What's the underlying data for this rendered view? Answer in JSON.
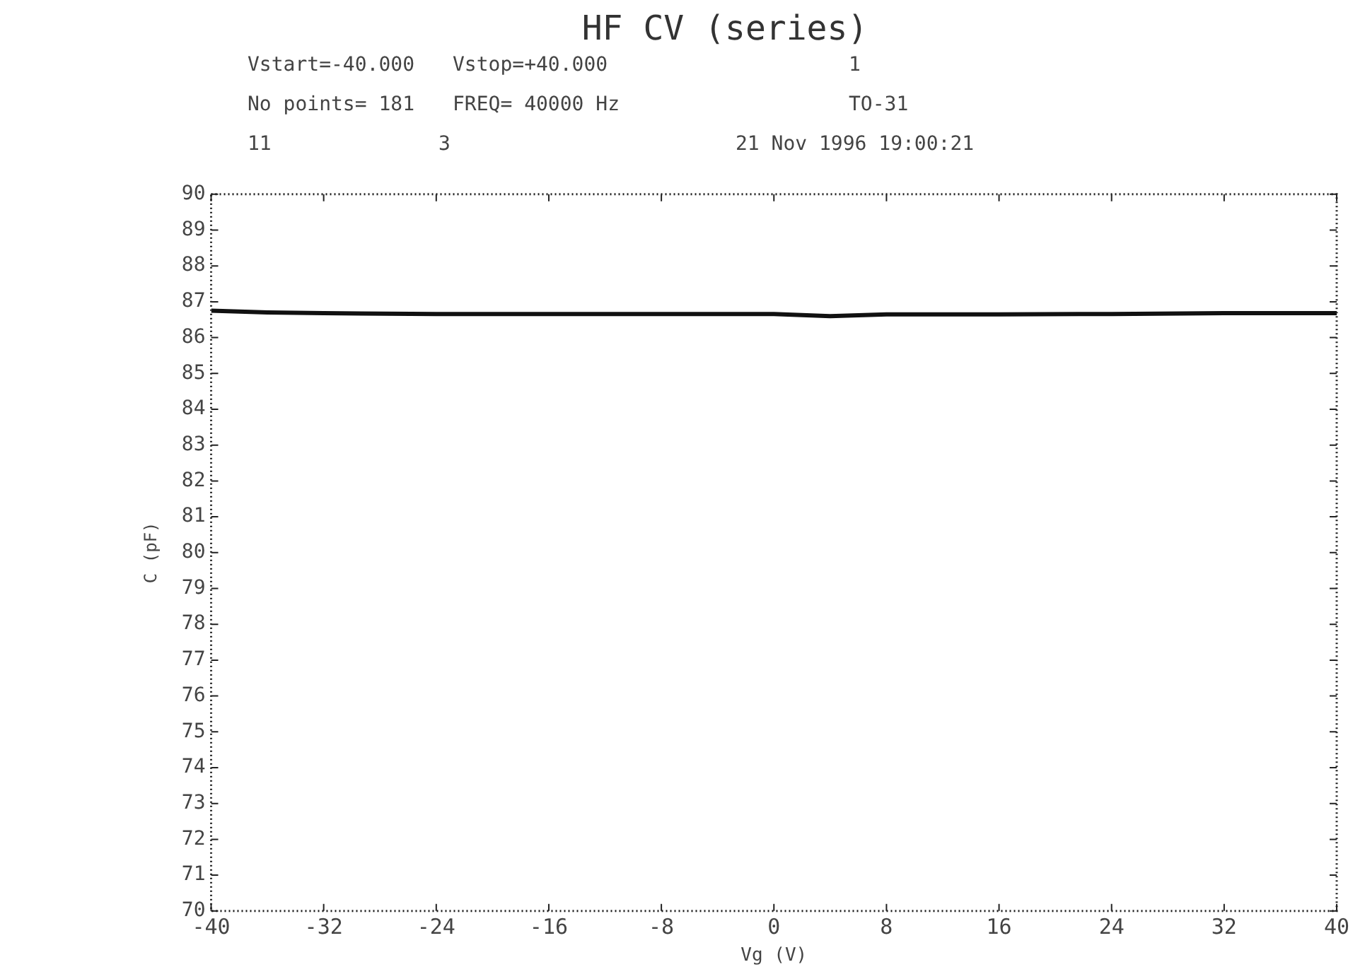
{
  "chart_data": {
    "type": "line",
    "title": "HF CV (series)",
    "xlabel": "Vg (V)",
    "ylabel": "C (pF)",
    "annotations": [
      "Vstart=-40.000",
      "Vstop=+40.000",
      "1",
      "No points= 181",
      "FREQ= 40000 Hz",
      "TO-31",
      "11",
      "3",
      "21 Nov 1996 19:00:21"
    ],
    "x": [
      -40,
      -36,
      -32,
      -24,
      -16,
      -8,
      0,
      4,
      8,
      16,
      24,
      32,
      36,
      40
    ],
    "series": [
      {
        "color": "#111111",
        "values": [
          86.75,
          86.7,
          86.68,
          86.66,
          86.66,
          86.66,
          86.66,
          86.6,
          86.65,
          86.65,
          86.66,
          86.68,
          86.68,
          86.68
        ]
      }
    ],
    "xlim": [
      -40,
      40
    ],
    "xticks": [
      -40,
      -32,
      -24,
      -16,
      -8,
      0,
      8,
      16,
      24,
      32,
      40
    ],
    "ylim": [
      70,
      90
    ],
    "yticks": [
      70,
      71,
      72,
      73,
      74,
      75,
      76,
      77,
      78,
      79,
      80,
      81,
      82,
      83,
      84,
      85,
      86,
      87,
      88,
      89,
      90
    ],
    "grid": false,
    "legend": false,
    "marker": "none",
    "line_style": "solid"
  }
}
